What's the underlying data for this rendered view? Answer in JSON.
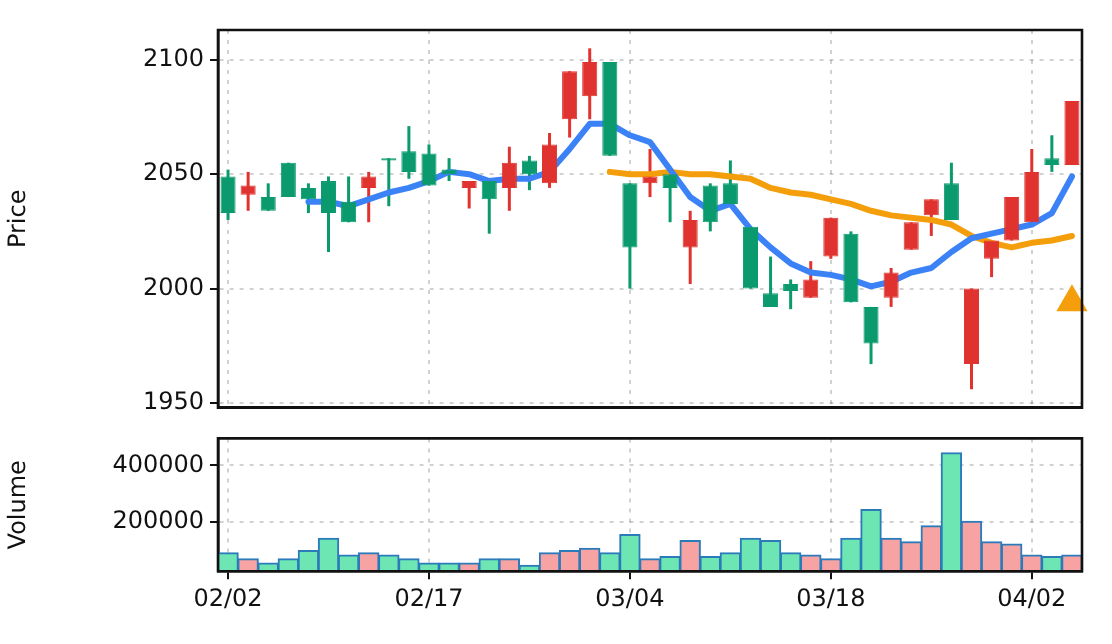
{
  "chart_data": [
    {
      "type": "candlestick",
      "ylabel": "Price",
      "tick_labels": "y",
      "grid": true,
      "legend": false,
      "categories": [
        null,
        null,
        null,
        null,
        null,
        null,
        null,
        null,
        null,
        null,
        null,
        null,
        null,
        null,
        null,
        null,
        null,
        null,
        null,
        null,
        null,
        null,
        null,
        null,
        null,
        null,
        null,
        null,
        null,
        null,
        null,
        null,
        null,
        null,
        null,
        null,
        null,
        null,
        null,
        null,
        null,
        null,
        null
      ],
      "ylim": [
        1948,
        2113
      ],
      "yticks": [
        1950,
        2000,
        2050,
        2100
      ],
      "ohlc": [
        [
          2033,
          2052,
          2030,
          2049
        ],
        [
          2045,
          2051,
          2034,
          2041
        ],
        [
          2034,
          2046,
          2034,
          2040
        ],
        [
          2040,
          2055,
          2040,
          2055
        ],
        [
          2039,
          2046,
          2033,
          2044
        ],
        [
          2033,
          2049,
          2016,
          2047
        ],
        [
          2029,
          2049,
          2029,
          2038
        ],
        [
          2049,
          2051,
          2029,
          2044
        ],
        [
          2056,
          2057,
          2036,
          2057
        ],
        [
          2051,
          2071,
          2048,
          2060
        ],
        [
          2045,
          2063,
          2045,
          2059
        ],
        [
          2050,
          2057,
          2047,
          2052
        ],
        [
          2047,
          2047,
          2035,
          2044
        ],
        [
          2039,
          2047,
          2024,
          2047
        ],
        [
          2055,
          2062,
          2034,
          2044
        ],
        [
          2050,
          2058,
          2043,
          2056
        ],
        [
          2063,
          2068,
          2044,
          2046
        ],
        [
          2095,
          2095,
          2066,
          2074
        ],
        [
          2099,
          2105,
          2074,
          2084
        ],
        [
          2058,
          2099,
          2058,
          2099
        ],
        [
          2018,
          2046,
          2000,
          2046
        ],
        [
          2049,
          2061,
          2040,
          2046
        ],
        [
          2044,
          2050,
          2029,
          2050
        ],
        [
          2030,
          2034,
          2002,
          2018
        ],
        [
          2029,
          2046,
          2025,
          2045
        ],
        [
          2037,
          2056,
          2037,
          2046
        ],
        [
          2000,
          2027,
          2000,
          2027
        ],
        [
          1992,
          2014,
          1992,
          1998
        ],
        [
          1999,
          2004,
          1991,
          2002
        ],
        [
          2004,
          2012,
          1996,
          1996
        ],
        [
          2031,
          2031,
          2013,
          2014
        ],
        [
          1994,
          2025,
          1994,
          2024
        ],
        [
          1976,
          1992,
          1967,
          1992
        ],
        [
          2007,
          2009,
          1992,
          1996
        ],
        [
          2029,
          2029,
          2017,
          2017
        ],
        [
          2039,
          2039,
          2023,
          2032
        ],
        [
          2030,
          2055,
          2030,
          2046
        ],
        [
          2000,
          2000,
          1956,
          1967
        ],
        [
          2021,
          2021,
          2005,
          2013
        ],
        [
          2040,
          2040,
          2021,
          2021
        ],
        [
          2051,
          2061,
          2029,
          2029
        ],
        [
          2054,
          2067,
          2051,
          2057
        ],
        [
          2082,
          2082,
          2054,
          2054
        ]
      ],
      "series": [
        {
          "type": "line",
          "color": "#3b82f6",
          "values": [
            null,
            null,
            null,
            null,
            2038,
            2038,
            2036,
            2039,
            2042,
            2044,
            2047,
            2051,
            2050,
            2047,
            2048,
            2048,
            2051,
            2061,
            2072,
            2072,
            2067,
            2064,
            2052,
            2040,
            2034,
            2037,
            2026,
            2018,
            2011,
            2007,
            2006,
            2004,
            2001,
            2003,
            2007,
            2009,
            2016,
            2022,
            2024,
            2026,
            2028,
            2033,
            2049
          ]
        },
        {
          "type": "line",
          "color": "#f59e0b",
          "values": [
            null,
            null,
            null,
            null,
            null,
            null,
            null,
            null,
            null,
            null,
            null,
            null,
            null,
            null,
            null,
            null,
            null,
            null,
            null,
            2051,
            2050,
            2050,
            2051,
            2050,
            2050,
            2049,
            2048,
            2044,
            2042,
            2041,
            2039,
            2037,
            2034,
            2032,
            2031,
            2030,
            2028,
            2023,
            2020,
            2018,
            2020,
            2021,
            2023
          ]
        },
        {
          "type": "scatter",
          "marker": "triangle",
          "color": "#f59e0b",
          "values": [
            null,
            null,
            null,
            null,
            null,
            null,
            null,
            null,
            null,
            null,
            null,
            null,
            null,
            null,
            null,
            null,
            null,
            null,
            null,
            null,
            null,
            null,
            null,
            null,
            null,
            null,
            null,
            null,
            null,
            null,
            null,
            null,
            null,
            null,
            null,
            null,
            null,
            null,
            null,
            null,
            null,
            null,
            1994
          ]
        }
      ]
    },
    {
      "type": "bar",
      "ylabel": "Volume",
      "grid": true,
      "legend": false,
      "categories": [
        "02/02",
        null,
        null,
        null,
        null,
        null,
        null,
        null,
        null,
        null,
        "02/17",
        null,
        null,
        null,
        null,
        null,
        null,
        null,
        null,
        null,
        "03/04",
        null,
        null,
        null,
        null,
        null,
        null,
        null,
        null,
        null,
        "03/18",
        null,
        null,
        null,
        null,
        null,
        null,
        null,
        null,
        null,
        "04/02",
        null,
        null
      ],
      "ylim": [
        23000,
        496000
      ],
      "yticks": [
        200000,
        400000
      ],
      "values": [
        88000,
        67000,
        52000,
        67000,
        96000,
        140000,
        80000,
        88000,
        80000,
        67000,
        52000,
        52000,
        52000,
        67000,
        67000,
        44000,
        88000,
        96000,
        104000,
        88000,
        153000,
        67000,
        75000,
        132000,
        75000,
        88000,
        140000,
        132000,
        88000,
        80000,
        67000,
        140000,
        242000,
        140000,
        127000,
        184000,
        444000,
        200000,
        127000,
        119000,
        80000,
        75000,
        80000
      ],
      "colors": [
        "#6ee6b4",
        "#f7a3a3",
        "#6ee6b4",
        "#6ee6b4",
        "#6ee6b4",
        "#6ee6b4",
        "#6ee6b4",
        "#f7a3a3",
        "#6ee6b4",
        "#6ee6b4",
        "#6ee6b4",
        "#6ee6b4",
        "#f7a3a3",
        "#6ee6b4",
        "#f7a3a3",
        "#6ee6b4",
        "#f7a3a3",
        "#f7a3a3",
        "#f7a3a3",
        "#6ee6b4",
        "#6ee6b4",
        "#f7a3a3",
        "#6ee6b4",
        "#f7a3a3",
        "#6ee6b4",
        "#6ee6b4",
        "#6ee6b4",
        "#6ee6b4",
        "#6ee6b4",
        "#f7a3a3",
        "#f7a3a3",
        "#6ee6b4",
        "#6ee6b4",
        "#f7a3a3",
        "#f7a3a3",
        "#f7a3a3",
        "#6ee6b4",
        "#f7a3a3",
        "#f7a3a3",
        "#f7a3a3",
        "#f7a3a3",
        "#6ee6b4",
        "#f7a3a3"
      ]
    }
  ]
}
